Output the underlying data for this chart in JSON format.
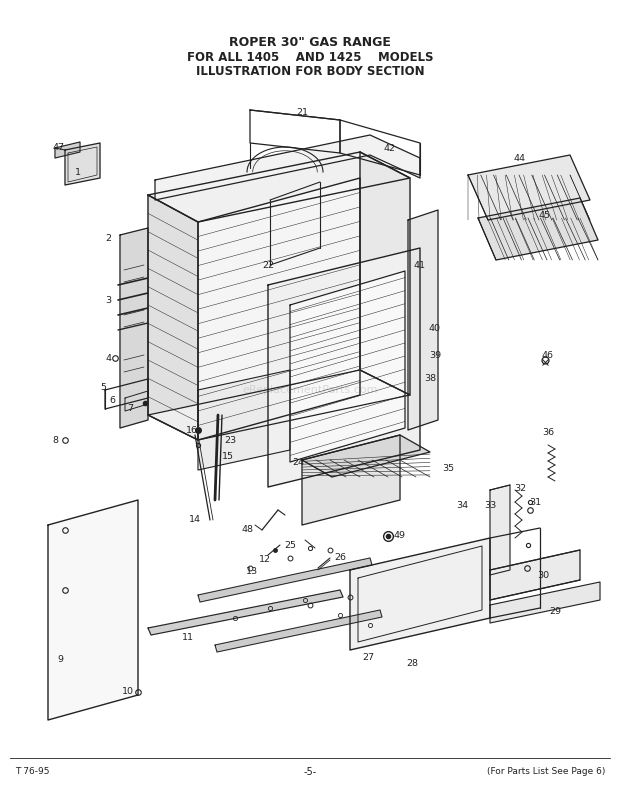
{
  "title_line1": "ROPER 30\" GAS RANGE",
  "title_line2": "FOR ALL 1405    AND 1425    MODELS",
  "title_line3": "ILLUSTRATION FOR BODY SECTION",
  "footer_left": "T 76-95",
  "footer_center": "-5-",
  "footer_right": "(For Parts List See Page 6)",
  "bg_color": "#ffffff",
  "line_color": "#222222",
  "watermark": "eReplacementParts.com"
}
